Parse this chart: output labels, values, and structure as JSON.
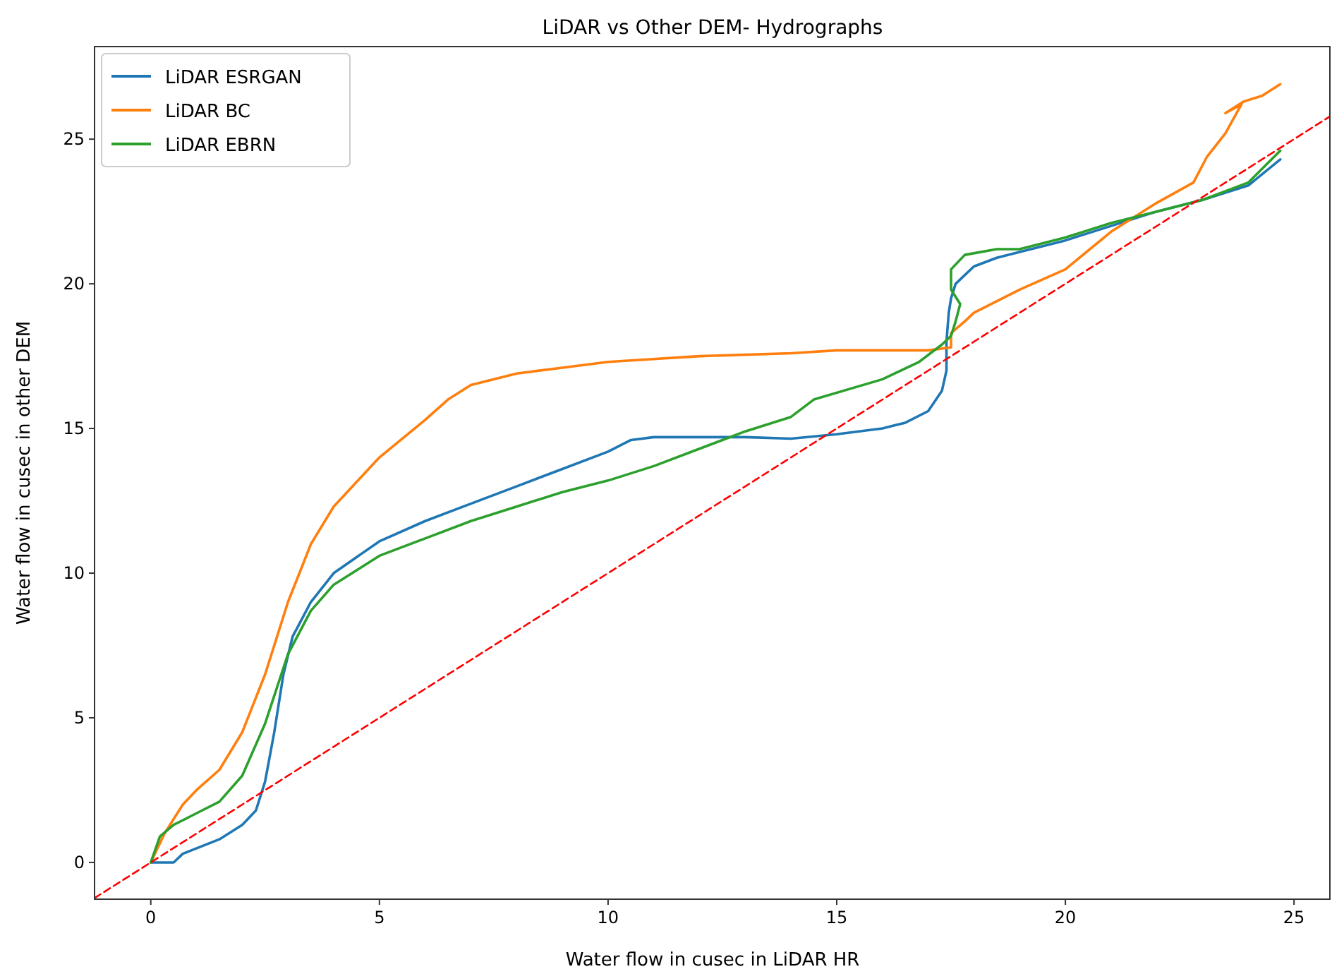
{
  "chart_data": {
    "type": "line",
    "title": "LiDAR vs Other DEM- Hydrographs",
    "xlabel": "Water flow in cusec in LiDAR HR",
    "ylabel": "Water flow in cusec in other DEM",
    "xlim": [
      -1.23,
      25.8
    ],
    "ylim": [
      -1.27,
      28.2
    ],
    "xticks": [
      0,
      5,
      10,
      15,
      20,
      25
    ],
    "yticks": [
      0,
      5,
      10,
      15,
      20,
      25
    ],
    "grid": false,
    "legend": "top left",
    "line_style": "solid",
    "marker": "none",
    "series": [
      {
        "name": "LiDAR ESRGAN",
        "color": "#1f77b4",
        "x": [
          0,
          0.5,
          0.7,
          1.5,
          2,
          2.3,
          2.5,
          2.7,
          2.9,
          3.1,
          3.5,
          4,
          5,
          6,
          7,
          8,
          9,
          10,
          10.5,
          11,
          12,
          13,
          14,
          15,
          16,
          16.5,
          17,
          17.3,
          17.4,
          17.4,
          17.45,
          17.5,
          17.6,
          18,
          18.5,
          19,
          20,
          21,
          22,
          23,
          24,
          24.7
        ],
        "values": [
          0,
          0,
          0.3,
          0.8,
          1.3,
          1.8,
          2.8,
          4.5,
          6.5,
          7.8,
          9,
          10,
          11.1,
          11.8,
          12.4,
          13,
          13.6,
          14.2,
          14.6,
          14.7,
          14.7,
          14.7,
          14.65,
          14.8,
          15,
          15.2,
          15.6,
          16.3,
          17,
          18,
          19,
          19.5,
          20,
          20.6,
          20.9,
          21.1,
          21.5,
          22,
          22.5,
          22.9,
          23.4,
          24.3
        ]
      },
      {
        "name": "LiDAR BC",
        "color": "#ff7f0e",
        "x": [
          0,
          0.3,
          0.7,
          1,
          1.5,
          2,
          2.5,
          3,
          3.5,
          4,
          5,
          6,
          6.5,
          7,
          8,
          9,
          10,
          12,
          14,
          15,
          17,
          17.5,
          17.5,
          17.8,
          18,
          19,
          20,
          21,
          22,
          22.8,
          23.1,
          23.5,
          23.85,
          23.5,
          23.9,
          24.3,
          24.7
        ],
        "values": [
          0,
          1,
          2,
          2.5,
          3.2,
          4.5,
          6.5,
          9,
          11,
          12.3,
          14,
          15.3,
          16,
          16.5,
          16.9,
          17.1,
          17.3,
          17.5,
          17.6,
          17.7,
          17.7,
          17.8,
          18.3,
          18.7,
          19,
          19.8,
          20.5,
          21.8,
          22.8,
          23.5,
          24.4,
          25.2,
          26.2,
          25.9,
          26.3,
          26.5,
          26.9
        ]
      },
      {
        "name": "LiDAR EBRN",
        "color": "#2ca02c",
        "x": [
          0,
          0.2,
          0.5,
          1,
          1.5,
          2,
          2.5,
          3,
          3.5,
          4,
          5,
          6,
          7,
          8,
          9,
          10,
          11,
          12,
          13,
          14,
          14.5,
          16,
          16.8,
          17.3,
          17.5,
          17.6,
          17.7,
          17.5,
          17.5,
          17.8,
          18.5,
          19,
          20,
          21,
          22,
          23,
          24,
          24.7
        ],
        "values": [
          0,
          0.9,
          1.3,
          1.7,
          2.1,
          3,
          4.8,
          7.2,
          8.7,
          9.6,
          10.6,
          11.2,
          11.8,
          12.3,
          12.8,
          13.2,
          13.7,
          14.3,
          14.9,
          15.4,
          16,
          16.7,
          17.3,
          17.9,
          18.2,
          18.7,
          19.3,
          19.8,
          20.5,
          21,
          21.2,
          21.2,
          21.6,
          22.1,
          22.5,
          22.9,
          23.5,
          24.6
        ]
      },
      {
        "color": "#ff0000",
        "line_style": "dashed",
        "x": [
          -1.23,
          25.8
        ],
        "values": [
          -1.23,
          25.8
        ]
      }
    ]
  }
}
